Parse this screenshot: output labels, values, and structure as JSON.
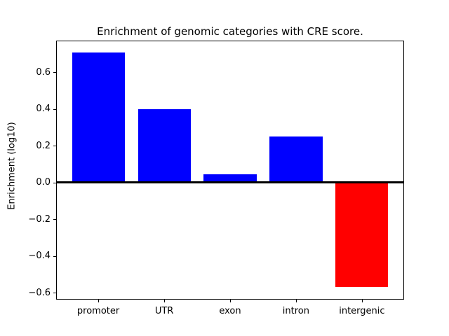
{
  "window": {
    "background_color": "#ffffff"
  },
  "chart_data": {
    "type": "bar",
    "title": "Enrichment of genomic categories with CRE score.",
    "xlabel": "",
    "ylabel": "Enrichment (log10)",
    "categories": [
      "promoter",
      "UTR",
      "exon",
      "intron",
      "intergenic"
    ],
    "values": [
      0.71,
      0.4,
      0.045,
      0.25,
      -0.57
    ],
    "bar_colors": [
      "#0000ff",
      "#0000ff",
      "#0000ff",
      "#0000ff",
      "#ff0000"
    ],
    "positive_color": "#0000ff",
    "negative_color": "#ff0000",
    "yticks": [
      0.6,
      0.4,
      0.2,
      0.0,
      -0.2,
      -0.4,
      -0.6
    ],
    "ytick_labels": [
      "0.6",
      "0.4",
      "0.2",
      "0.0",
      "−0.2",
      "−0.4",
      "−0.6"
    ],
    "ylim": [
      -0.638,
      0.773
    ],
    "grid": false,
    "legend_position": "none",
    "zero_line": true,
    "axis_color": "#000000"
  }
}
